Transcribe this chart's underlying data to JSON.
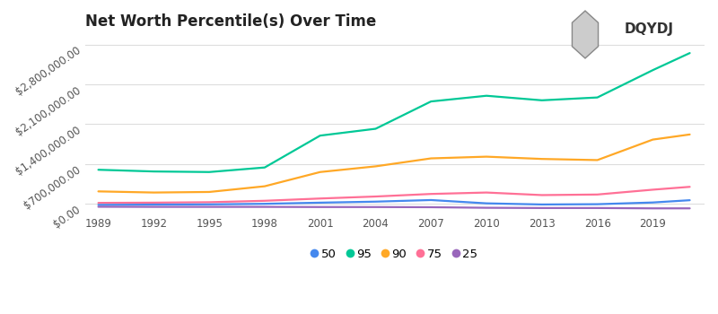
{
  "title": "Net Worth Percentile(s) Over Time",
  "years": [
    1989,
    1992,
    1995,
    1998,
    2001,
    2004,
    2007,
    2010,
    2013,
    2016,
    2019,
    2021
  ],
  "series": {
    "95": {
      "color": "#00c896",
      "values": [
        600000,
        570000,
        560000,
        640000,
        1200000,
        1320000,
        1800000,
        1900000,
        1820000,
        1870000,
        2350000,
        2650000
      ]
    },
    "90": {
      "color": "#ffa826",
      "values": [
        220000,
        200000,
        210000,
        310000,
        560000,
        660000,
        800000,
        830000,
        790000,
        770000,
        1130000,
        1220000
      ]
    },
    "75": {
      "color": "#ff7096",
      "values": [
        18000,
        22000,
        30000,
        55000,
        95000,
        130000,
        175000,
        200000,
        155000,
        165000,
        250000,
        300000
      ]
    },
    "50": {
      "color": "#4488ee",
      "values": [
        -18000,
        -12000,
        -8000,
        2000,
        22000,
        40000,
        68000,
        10000,
        -10000,
        -5000,
        25000,
        65000
      ]
    },
    "25": {
      "color": "#9966bb",
      "values": [
        -50000,
        -52000,
        -52000,
        -52000,
        -55000,
        -55000,
        -58000,
        -68000,
        -72000,
        -72000,
        -78000,
        -78000
      ]
    }
  },
  "legend_order": [
    "50",
    "95",
    "90",
    "75",
    "25"
  ],
  "yticks": [
    0,
    700000,
    1400000,
    2100000,
    2800000
  ],
  "ylim": [
    -200000,
    2950000
  ],
  "xlim": [
    1988.3,
    2021.8
  ],
  "xticks": [
    1989,
    1992,
    1995,
    1998,
    2001,
    2004,
    2007,
    2010,
    2013,
    2016,
    2019
  ],
  "background_color": "#ffffff",
  "grid_color": "#dddddd",
  "title_fontsize": 12,
  "tick_fontsize": 8.5
}
